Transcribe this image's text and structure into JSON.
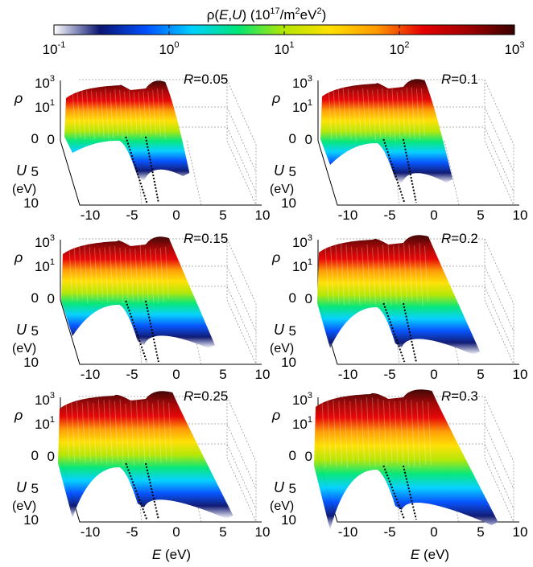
{
  "colorbar": {
    "title_prefix": "ρ(",
    "title_E": "E",
    "title_sep": ",",
    "title_U": "U",
    "title_mid": ") (10",
    "title_exp": "17",
    "title_unit1": "/m",
    "title_unit1_exp": "2",
    "title_unit2": "eV",
    "title_unit2_exp": "2",
    "title_close": ")",
    "scale": "log",
    "range": [
      0.1,
      1000
    ],
    "ticks": [
      {
        "base": "10",
        "exp": "-1",
        "value": 0.1
      },
      {
        "base": "10",
        "exp": "0",
        "value": 1
      },
      {
        "base": "10",
        "exp": "1",
        "value": 10
      },
      {
        "base": "10",
        "exp": "2",
        "value": 100
      },
      {
        "base": "10",
        "exp": "3",
        "value": 1000
      }
    ],
    "colormap": [
      "#ffffff",
      "#0a1470",
      "#0050ff",
      "#00d0ff",
      "#00e676",
      "#b4e600",
      "#ffe000",
      "#ff9a00",
      "#e60000",
      "#a00000",
      "#3a0000"
    ]
  },
  "axis_labels": {
    "rho": "ρ",
    "u_label": "U",
    "u_unit": "(eV)",
    "e_label": "E",
    "e_unit": "(eV)"
  },
  "z_ticks": [
    {
      "base": "10",
      "exp": "3"
    },
    {
      "base": "10",
      "exp": "1"
    },
    {
      "base": "0",
      "exp": ""
    }
  ],
  "u_ticks": [
    "0",
    "5",
    "10"
  ],
  "e_ticks": [
    "-10",
    "-5",
    "0",
    "5",
    "10"
  ],
  "r_label": "R",
  "r_eq": "=",
  "chart_data": [
    {
      "type": "area",
      "R": "0.05",
      "x_range": [
        -10,
        10
      ],
      "y_range": [
        0,
        10
      ],
      "z_scale": "log",
      "band_left": [
        -10,
        -3.6
      ],
      "band_right": [
        -1.6,
        0.2
      ],
      "shoulder_right": 1.8
    },
    {
      "type": "area",
      "R": "0.1",
      "x_range": [
        -10,
        10
      ],
      "y_range": [
        0,
        10
      ],
      "z_scale": "log",
      "band_left": [
        -10,
        -3.6
      ],
      "band_right": [
        -1.6,
        0.4
      ],
      "shoulder_right": 2.4
    },
    {
      "type": "area",
      "R": "0.15",
      "x_range": [
        -10,
        10
      ],
      "y_range": [
        0,
        10
      ],
      "z_scale": "log",
      "band_left": [
        -10,
        -3.6
      ],
      "band_right": [
        -1.6,
        0.6
      ],
      "shoulder_right": 4.6
    },
    {
      "type": "area",
      "R": "0.2",
      "x_range": [
        -10,
        10
      ],
      "y_range": [
        0,
        10
      ],
      "z_scale": "log",
      "band_left": [
        -10,
        -3.6
      ],
      "band_right": [
        -1.6,
        0.8
      ],
      "shoulder_right": 5.4
    },
    {
      "type": "area",
      "R": "0.25",
      "x_range": [
        -10,
        10
      ],
      "y_range": [
        0,
        10
      ],
      "z_scale": "log",
      "band_left": [
        -10,
        -3.6
      ],
      "band_right": [
        -1.6,
        1.0
      ],
      "shoulder_right": 6.6
    },
    {
      "type": "area",
      "R": "0.3",
      "x_range": [
        -10,
        10
      ],
      "y_range": [
        0,
        10
      ],
      "z_scale": "log",
      "band_left": [
        -10,
        -3.6
      ],
      "band_right": [
        -1.6,
        1.2
      ],
      "shoulder_right": 7.4
    }
  ]
}
